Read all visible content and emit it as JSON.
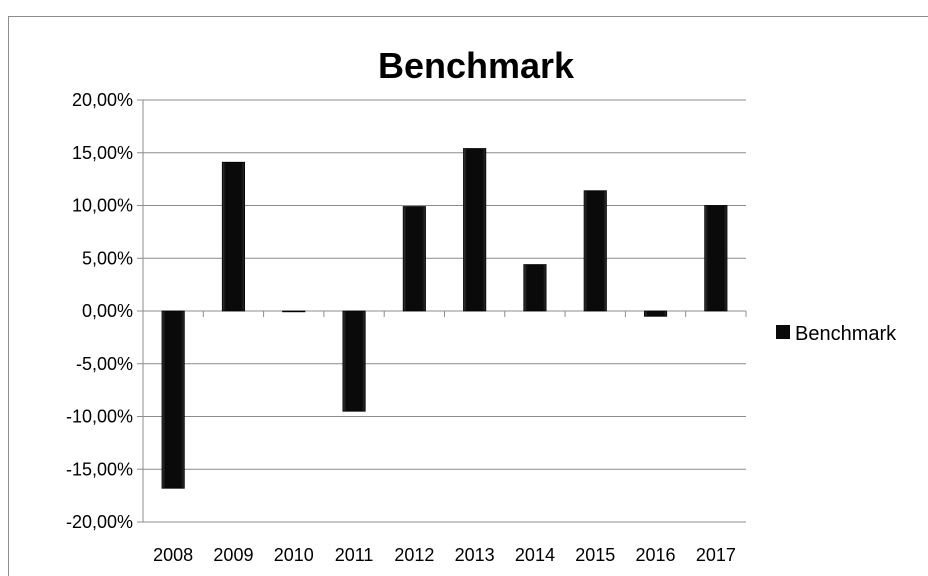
{
  "chart_data": {
    "type": "bar",
    "title": "Benchmark",
    "xlabel": "",
    "ylabel": "",
    "categories": [
      "2008",
      "2009",
      "2010",
      "2011",
      "2012",
      "2013",
      "2014",
      "2015",
      "2016",
      "2017"
    ],
    "series": [
      {
        "name": "Benchmark",
        "values": [
          -16.8,
          14.1,
          0.0,
          -9.5,
          9.9,
          15.4,
          4.4,
          11.4,
          -0.5,
          10.0
        ],
        "color": "#0a0a0a"
      }
    ],
    "ylim": [
      -20,
      20
    ],
    "yticks": [
      20,
      15,
      10,
      5,
      0,
      -5,
      -10,
      -15,
      -20
    ],
    "ytick_labels": [
      "20,00%",
      "15,00%",
      "10,00%",
      "5,00%",
      "0,00%",
      "-5,00%",
      "-10,00%",
      "-15,00%",
      "-20,00%"
    ],
    "grid": "horizontal",
    "legend_position": "right"
  }
}
